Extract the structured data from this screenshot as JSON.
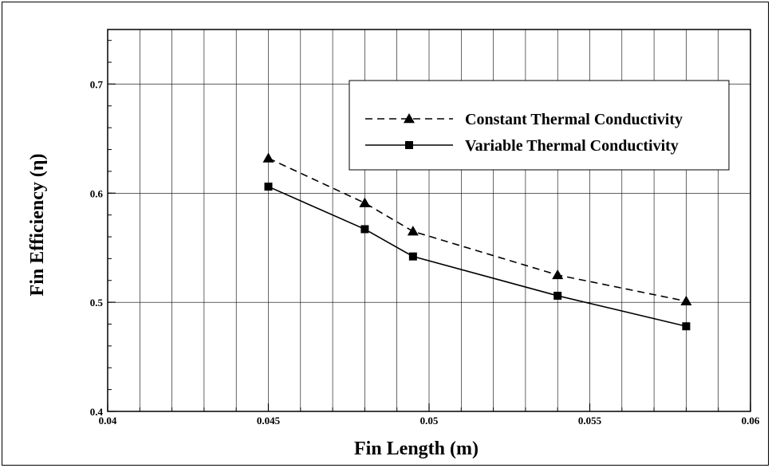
{
  "chart_data": {
    "type": "line",
    "title": "",
    "xlabel": "Fin Length (m)",
    "ylabel": "Fin Efficiency (η)",
    "xlim": [
      0.04,
      0.06
    ],
    "ylim": [
      0.4,
      0.75
    ],
    "xticks": [
      0.04,
      0.045,
      0.05,
      0.055,
      0.06
    ],
    "xtick_labels": [
      "0.04",
      "0.045",
      "0.05",
      "0.055",
      "0.06"
    ],
    "yticks": [
      0.4,
      0.5,
      0.6,
      0.7
    ],
    "ytick_labels": [
      "0.4",
      "0.5",
      "0.6",
      "0.7"
    ],
    "grid": true,
    "legend_position": "top-right",
    "series": [
      {
        "name": "Constant Thermal Conductivity",
        "marker": "triangle",
        "line_style": "dashed",
        "color": "#000000",
        "x": [
          0.045,
          0.048,
          0.0495,
          0.054,
          0.058
        ],
        "y": [
          0.632,
          0.591,
          0.565,
          0.525,
          0.501
        ]
      },
      {
        "name": "Variable Thermal Conductivity",
        "marker": "square",
        "line_style": "solid",
        "color": "#000000",
        "x": [
          0.045,
          0.048,
          0.0495,
          0.054,
          0.058
        ],
        "y": [
          0.606,
          0.567,
          0.542,
          0.506,
          0.478
        ]
      }
    ]
  }
}
